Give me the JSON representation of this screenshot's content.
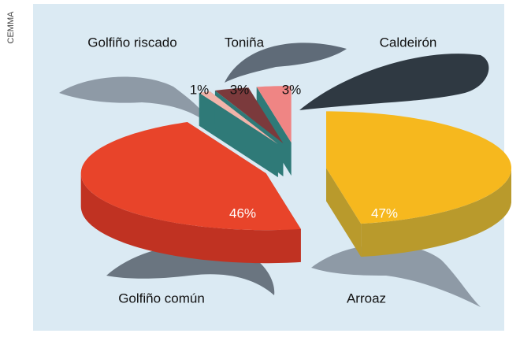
{
  "chart_data": {
    "type": "pie",
    "credit": "CEMMA",
    "categories": [
      "Arroaz",
      "Golfiño común",
      "Golfiño riscado",
      "Toniña",
      "Caldeirón"
    ],
    "values": [
      47,
      46,
      1,
      3,
      3
    ],
    "value_labels": [
      "47%",
      "46%",
      "1%",
      "3%",
      "3%"
    ],
    "colors": [
      "#f6b81e",
      "#e8442a",
      "#f2b4aa",
      "#7b3a3c",
      "#ef8584"
    ]
  }
}
